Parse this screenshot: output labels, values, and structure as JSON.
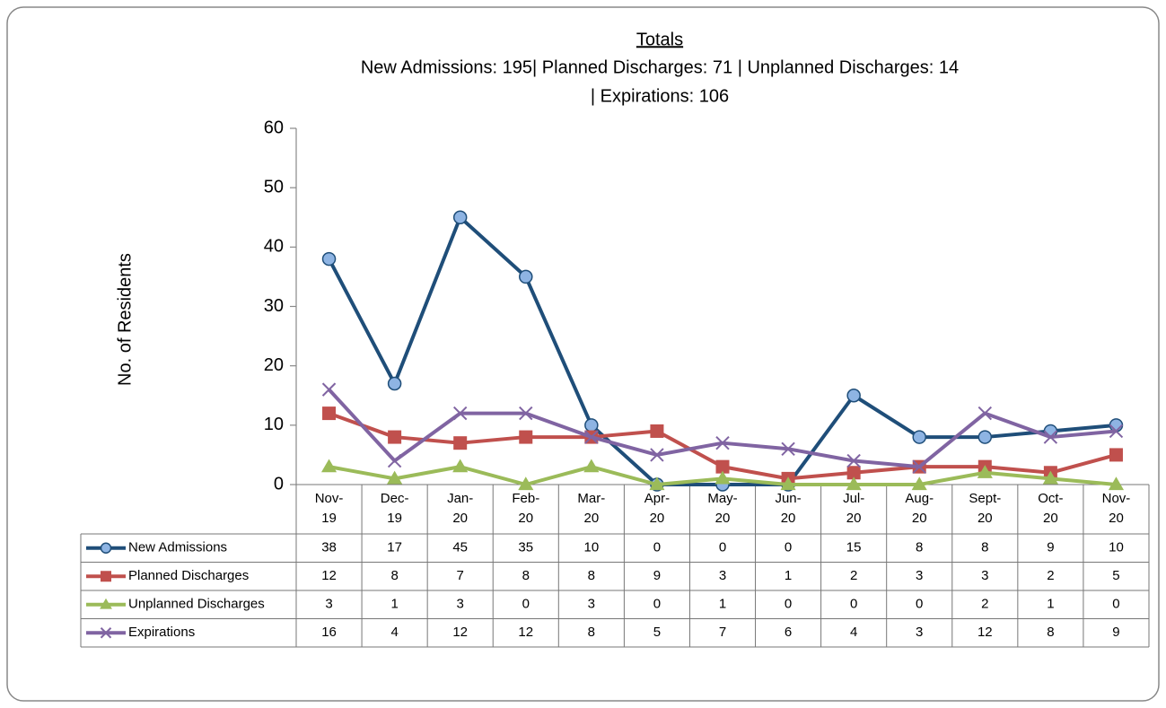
{
  "chart_data": {
    "type": "line",
    "title": "Totals",
    "subtitle": [
      "New Admissions: 195| Planned Discharges: 71 | Unplanned Discharges: 14",
      "| Expirations: 106"
    ],
    "y_label": "No. of Residents",
    "categories": [
      "Nov-19",
      "Dec-19",
      "Jan-20",
      "Feb-20",
      "Mar-20",
      "Apr-20",
      "May-20",
      "Jun-20",
      "Jul-20",
      "Aug-20",
      "Sept-20",
      "Oct-20",
      "Nov-20"
    ],
    "series": [
      {
        "name": "New Admissions",
        "color": "#1f4e79",
        "marker": "circle",
        "marker_color": "#8eb4e3",
        "values": [
          38,
          17,
          45,
          35,
          10,
          0,
          0,
          0,
          15,
          8,
          8,
          9,
          10
        ]
      },
      {
        "name": "Planned Discharges",
        "color": "#c0504d",
        "marker": "square",
        "marker_color": "#c0504d",
        "values": [
          12,
          8,
          7,
          8,
          8,
          9,
          3,
          1,
          2,
          3,
          3,
          2,
          5
        ]
      },
      {
        "name": "Unplanned Discharges",
        "color": "#9bbb59",
        "marker": "triangle",
        "marker_color": "#9bbb59",
        "values": [
          3,
          1,
          3,
          0,
          3,
          0,
          1,
          0,
          0,
          0,
          2,
          1,
          0
        ]
      },
      {
        "name": "Expirations",
        "color": "#8064a2",
        "marker": "x",
        "marker_color": "#8064a2",
        "values": [
          16,
          4,
          12,
          12,
          8,
          5,
          7,
          6,
          4,
          3,
          12,
          8,
          9
        ]
      }
    ],
    "ylim": [
      0,
      60
    ],
    "yticks": [
      0,
      10,
      20,
      30,
      40,
      50,
      60
    ],
    "grid": false,
    "data_table": true
  }
}
